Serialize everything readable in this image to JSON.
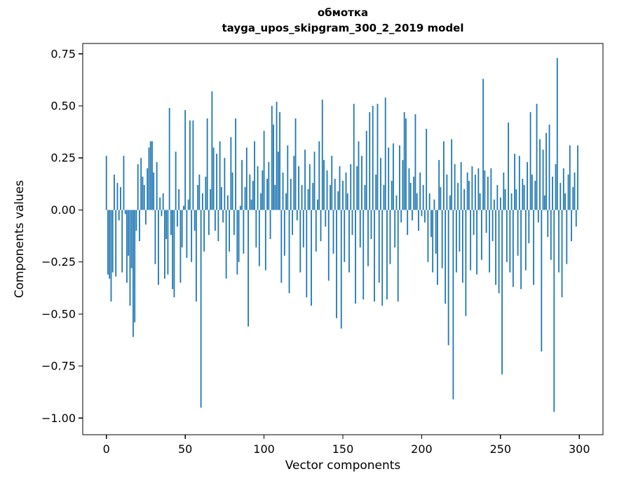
{
  "chart_data": {
    "type": "bar",
    "title": "обмотка",
    "subtitle": "tayga_upos_skipgram_300_2_2019 model",
    "xlabel": "Vector components",
    "ylabel": "Components values",
    "bar_color": "#1f77b4",
    "grid": false,
    "legend": "none",
    "xlim": [
      -15,
      315
    ],
    "ylim": [
      -1.08,
      0.8
    ],
    "xticks": [
      0,
      50,
      100,
      150,
      200,
      250,
      300
    ],
    "yticks": [
      -1.0,
      -0.75,
      -0.5,
      -0.25,
      0.0,
      0.25,
      0.5,
      0.75
    ],
    "values": [
      0.26,
      -0.31,
      -0.33,
      -0.44,
      -0.3,
      0.17,
      -0.32,
      0.13,
      -0.05,
      0.11,
      -0.3,
      0.26,
      -0.02,
      -0.35,
      -0.22,
      -0.46,
      -0.28,
      -0.61,
      -0.54,
      -0.1,
      0.22,
      -0.15,
      0.25,
      0.16,
      0.12,
      -0.07,
      0.2,
      0.3,
      0.33,
      0.33,
      0.18,
      -0.26,
      0.23,
      -0.36,
      0.06,
      -0.03,
      0.08,
      -0.33,
      -0.14,
      -0.31,
      0.49,
      -0.12,
      -0.38,
      -0.42,
      0.28,
      -0.08,
      0.1,
      -0.35,
      -0.18,
      0.02,
      0.48,
      -0.23,
      0.05,
      0.43,
      -0.25,
      0.43,
      -0.1,
      -0.44,
      0.12,
      0.17,
      -0.95,
      0.08,
      -0.2,
      0.16,
      0.44,
      -0.12,
      0.1,
      0.57,
      0.3,
      -0.1,
      0.27,
      -0.15,
      0.33,
      0.11,
      -0.06,
      0.25,
      -0.33,
      0.07,
      -0.2,
      0.35,
      0.18,
      -0.12,
      0.44,
      -0.31,
      -0.25,
      0.02,
      0.24,
      -0.21,
      0.11,
      0.3,
      -0.56,
      0.17,
      0.05,
      0.14,
      0.33,
      -0.18,
      0.21,
      -0.27,
      0.08,
      0.19,
      0.38,
      -0.29,
      0.15,
      0.23,
      -0.14,
      0.5,
      0.41,
      0.12,
      0.52,
      0.28,
      0.47,
      -0.35,
      0.18,
      -0.22,
      0.08,
      0.31,
      -0.4,
      0.15,
      -0.12,
      0.26,
      0.44,
      -0.05,
      0.21,
      -0.3,
      0.12,
      -0.18,
      0.29,
      -0.42,
      0.1,
      0.22,
      -0.46,
      0.13,
      0.28,
      -0.2,
      0.05,
      0.33,
      -0.15,
      0.53,
      0.24,
      -0.08,
      0.19,
      -0.34,
      0.12,
      0.26,
      -0.21,
      0.15,
      -0.52,
      0.09,
      0.21,
      -0.57,
      0.14,
      -0.25,
      0.18,
      0.08,
      -0.3,
      0.22,
      -0.12,
      0.51,
      -0.45,
      0.21,
      0.33,
      -0.18,
      0.26,
      -0.43,
      0.12,
      0.38,
      -0.27,
      0.47,
      -0.14,
      0.5,
      -0.44,
      0.17,
      0.51,
      -0.35,
      0.25,
      -0.46,
      0.12,
      0.54,
      -0.43,
      0.3,
      -0.26,
      0.14,
      0.32,
      -0.18,
      0.07,
      -0.44,
      0.31,
      -0.06,
      0.24,
      0.47,
      0.44,
      -0.12,
      0.2,
      0.13,
      -0.05,
      0.16,
      0.46,
      0.08,
      -0.1,
      0.18,
      -0.03,
      0.12,
      -0.06,
      0.39,
      -0.25,
      0.08,
      -0.13,
      -0.3,
      0.05,
      -0.21,
      -0.36,
      0.24,
      0.11,
      -0.28,
      0.33,
      -0.45,
      0.17,
      -0.65,
      0.07,
      0.34,
      -0.91,
      0.22,
      -0.3,
      0.13,
      -0.2,
      0.23,
      -0.35,
      0.1,
      -0.51,
      0.18,
      0.14,
      -0.29,
      0.21,
      -0.12,
      0.17,
      -0.31,
      0.2,
      0.08,
      -0.24,
      0.63,
      0.19,
      -0.11,
      0.16,
      -0.3,
      0.2,
      -0.15,
      0.05,
      -0.36,
      0.12,
      -0.4,
      0.06,
      -0.79,
      0.18,
      0.1,
      -0.25,
      0.42,
      -0.3,
      0.08,
      -0.37,
      0.27,
      0.1,
      -0.22,
      0.26,
      -0.38,
      0.15,
      0.12,
      -0.29,
      0.23,
      -0.16,
      0.47,
      0.17,
      -0.36,
      0.14,
      0.51,
      -0.06,
      0.34,
      -0.68,
      0.29,
      0.07,
      0.37,
      -0.13,
      0.41,
      -0.24,
      0.16,
      -0.97,
      0.22,
      0.73,
      -0.3,
      0.13,
      -0.42,
      0.2,
      0.08,
      -0.26,
      0.17,
      0.31,
      -0.15,
      0.11,
      0.18,
      -0.08,
      0.31
    ]
  }
}
